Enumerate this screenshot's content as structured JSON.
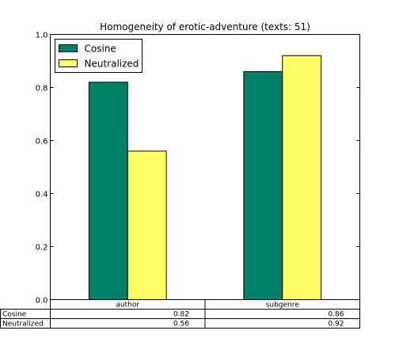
{
  "chart_data": {
    "type": "bar",
    "title": "Homogeneity of erotic-adventure (texts: 51)",
    "categories": [
      "author",
      "subgenre"
    ],
    "series": [
      {
        "name": "Cosine",
        "values": [
          0.82,
          0.86
        ],
        "color": "#008066"
      },
      {
        "name": "Neutralized",
        "values": [
          0.56,
          0.92
        ],
        "color": "#ffff66"
      }
    ],
    "ylim": [
      0.0,
      1.0
    ],
    "yticks": [
      "0.0",
      "0.2",
      "0.4",
      "0.6",
      "0.8",
      "1.0"
    ],
    "legend_position": "top-left",
    "grid": false,
    "table": {
      "column_headers": [
        "author",
        "subgenre"
      ],
      "rows": [
        {
          "label": "Cosine",
          "cells": [
            "0.82",
            "0.86"
          ]
        },
        {
          "label": "Neutralized",
          "cells": [
            "0.56",
            "0.92"
          ]
        }
      ]
    }
  }
}
